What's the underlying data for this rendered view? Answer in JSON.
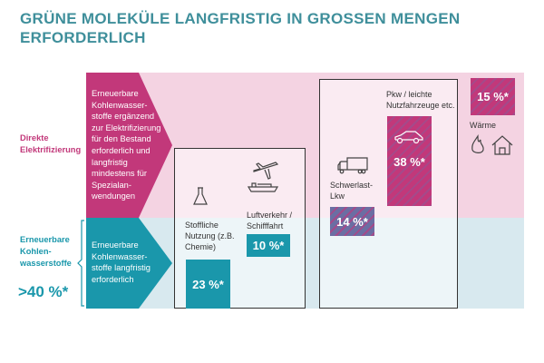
{
  "title": "GRÜNE MOLEKÜLE LANGFRISTIG IN GROSSEN MENGEN ERFORDERLICH",
  "rows": {
    "direct": {
      "label_1": "Direkte",
      "label_2": "Elektrifizierung",
      "arrow_text": "Erneuerbare Kohlenwasser-stoffe ergänzend zur Elektrifizierung für den Bestand erforderlich und langfristig mindestens für Spezialan-wendungen"
    },
    "hydrocarbons": {
      "label_1": "Erneuerbare",
      "label_2": "Kohlen-",
      "label_3": "wasserstoffe",
      "share": ">40 %*",
      "arrow_text": "Erneuerbare Kohlenwasser-stoffe langfristig erforderlich"
    }
  },
  "sectors": [
    {
      "label": "Stoffliche Nutzung (z.B. Chemie)",
      "value": "23 %*",
      "icon": "flask-icon"
    },
    {
      "label": "Luftverkehr / Schifffahrt",
      "value": "10 %*",
      "icon": "plane-ship-icon"
    },
    {
      "label": "Schwerlast-Lkw",
      "value": "14 %*",
      "icon": "truck-icon"
    },
    {
      "label": "Pkw / leichte Nutzfahrzeuge etc.",
      "value": "38 %*",
      "icon": "car-icon"
    },
    {
      "label": "Wärme",
      "value": "15 %*",
      "icon": "flame-house-icon"
    }
  ],
  "colors": {
    "pink": "#c2387a",
    "teal": "#1a97ab",
    "pink_bg": "#f4d3e2",
    "blue_bg": "#d8e9ef",
    "title": "#3f8f9b"
  }
}
